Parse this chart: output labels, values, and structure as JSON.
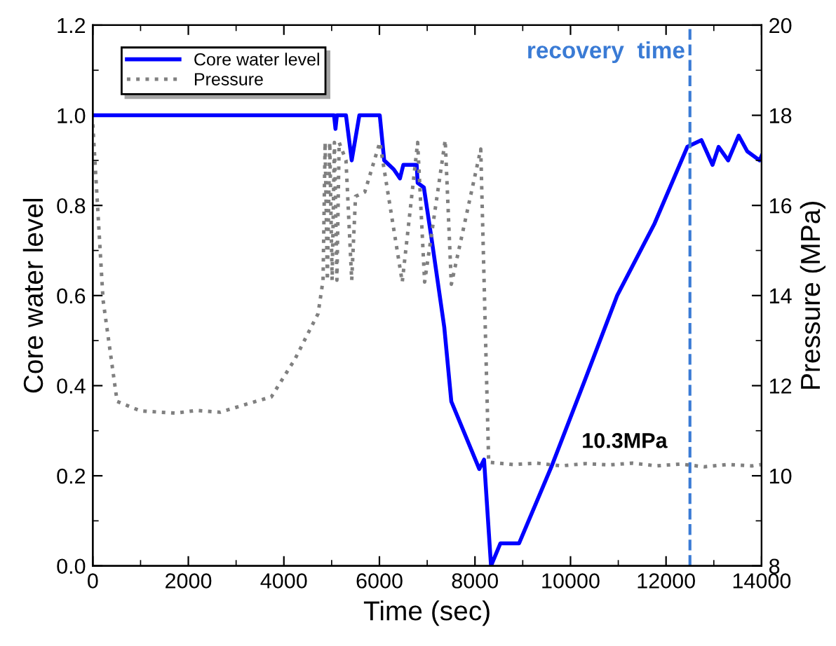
{
  "chart_data": {
    "type": "line",
    "xlabel": "Time (sec)",
    "ylabel": "Core water level",
    "y2label": "Pressure (MPa)",
    "xlim": [
      0,
      14000
    ],
    "xticks": [
      0,
      2000,
      4000,
      6000,
      8000,
      10000,
      12000,
      14000
    ],
    "ylim": [
      0.0,
      1.2
    ],
    "yticks": [
      {
        "value": 0.0,
        "label": "0.0"
      },
      {
        "value": 0.2,
        "label": "0.2"
      },
      {
        "value": 0.4,
        "label": "0.4"
      },
      {
        "value": 0.6,
        "label": "0.6"
      },
      {
        "value": 0.8,
        "label": "0.8"
      },
      {
        "value": 1.0,
        "label": "1.0"
      },
      {
        "value": 1.2,
        "label": "1.2"
      }
    ],
    "y2lim": [
      8,
      20
    ],
    "y2ticks": [
      8,
      10,
      12,
      14,
      16,
      18,
      20
    ],
    "grid": false,
    "legend": "top left",
    "series": [
      {
        "name": "Core water level",
        "color": "#0000ff",
        "line_style": "solid",
        "x": [
          0,
          5050,
          5080,
          5110,
          5300,
          5420,
          5580,
          6007,
          6100,
          6300,
          6430,
          6500,
          6780,
          6800,
          6930,
          7100,
          7357,
          7505,
          8090,
          8190,
          8336,
          8532,
          8923,
          9600,
          10293,
          10977,
          11760,
          12445,
          12740,
          12973,
          13100,
          13300,
          13520,
          13700,
          13960,
          14000
        ],
        "values": [
          1.0,
          1.0,
          0.97,
          1.0,
          1.0,
          0.9,
          1.0,
          1.0,
          0.9,
          0.88,
          0.86,
          0.89,
          0.89,
          0.85,
          0.84,
          0.72,
          0.53,
          0.365,
          0.215,
          0.236,
          0.0,
          0.05,
          0.05,
          0.22,
          0.41,
          0.6,
          0.76,
          0.93,
          0.945,
          0.89,
          0.93,
          0.9,
          0.955,
          0.92,
          0.9,
          0.91
        ]
      },
      {
        "name": "Pressure",
        "color": "#808080",
        "line_style": "dotted",
        "axis": "y2",
        "x": [
          0,
          215,
          509,
          998,
          1732,
          2172,
          2662,
          3250,
          3737,
          4227,
          4716,
          4820,
          4863,
          4910,
          4960,
          5010,
          5058,
          5110,
          5157,
          5300,
          5420,
          5500,
          5694,
          6008,
          6478,
          6800,
          6946,
          7377,
          7505,
          8121,
          8287,
          8800,
          9300,
          9800,
          10300,
          10800,
          11300,
          11800,
          12300,
          12800,
          13300,
          13800,
          14000
        ],
        "values": [
          17.8,
          13.9,
          11.65,
          11.44,
          11.39,
          11.45,
          11.41,
          11.6,
          11.75,
          12.58,
          13.6,
          14.34,
          17.4,
          14.34,
          17.4,
          14.34,
          17.4,
          14.34,
          17.4,
          17.0,
          14.34,
          16.2,
          16.3,
          17.4,
          14.3,
          17.4,
          14.3,
          17.45,
          14.25,
          17.25,
          10.3,
          10.25,
          10.28,
          10.22,
          10.27,
          10.24,
          10.28,
          10.22,
          10.26,
          10.2,
          10.25,
          10.22,
          10.25
        ]
      }
    ],
    "ref_lines": [
      {
        "axis": "x",
        "value": 12500,
        "label": "recovery  time",
        "color": "#3a7bd5",
        "line_style": "dashed"
      }
    ],
    "annotations": [
      "10.3MPa"
    ]
  }
}
